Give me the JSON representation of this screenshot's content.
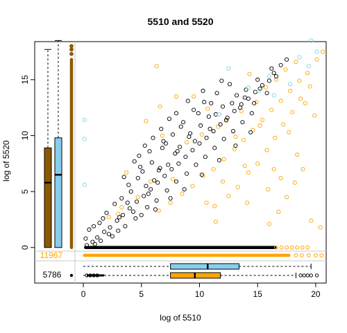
{
  "chart_data": {
    "type": "scatter",
    "title": "5510  and 5520",
    "xlabel": "log of 5510",
    "ylabel": "log of 5520",
    "xlim": [
      -0.6,
      20.9
    ],
    "ylim": [
      -0.2,
      18.4
    ],
    "x_ticks": [
      0,
      5,
      10,
      15,
      20
    ],
    "y_ticks": [
      0,
      5,
      10,
      15
    ],
    "colors": {
      "black_series": "#000000",
      "orange_series": "#FFA500",
      "lightblue_series": "#87CEEB",
      "brown_box": "#8B5A00",
      "grid_line": "#C8C8C8"
    },
    "series": [
      {
        "color": "black",
        "points": [
          [
            0.3,
            0.2
          ],
          [
            0.8,
            0.5
          ],
          [
            1.2,
            0.9
          ],
          [
            1.8,
            1.4
          ],
          [
            2.3,
            1.8
          ],
          [
            2.9,
            2.4
          ],
          [
            3.4,
            2.9
          ],
          [
            4.0,
            3.5
          ],
          [
            4.6,
            4.1
          ],
          [
            5.2,
            4.6
          ],
          [
            5.8,
            5.2
          ],
          [
            6.4,
            5.8
          ],
          [
            7.0,
            6.4
          ],
          [
            7.6,
            7.0
          ],
          [
            8.2,
            7.5
          ],
          [
            8.8,
            8.1
          ],
          [
            9.4,
            8.7
          ],
          [
            10.0,
            9.3
          ],
          [
            10.6,
            9.8
          ],
          [
            11.2,
            10.4
          ],
          [
            11.8,
            11.0
          ],
          [
            12.4,
            11.6
          ],
          [
            13.0,
            12.2
          ],
          [
            13.6,
            12.8
          ],
          [
            14.2,
            13.3
          ],
          [
            14.8,
            13.9
          ],
          [
            15.4,
            14.5
          ],
          [
            16.0,
            14.9
          ],
          [
            16.6,
            15.3
          ],
          [
            3.0,
            1.5
          ],
          [
            4.5,
            2.6
          ],
          [
            5.5,
            3.6
          ],
          [
            6.3,
            4.2
          ],
          [
            7.2,
            5.1
          ],
          [
            8.0,
            5.9
          ],
          [
            8.9,
            6.6
          ],
          [
            9.7,
            7.4
          ],
          [
            10.5,
            8.1
          ],
          [
            11.3,
            8.9
          ],
          [
            12.1,
            9.7
          ],
          [
            12.9,
            10.4
          ],
          [
            13.7,
            11.2
          ],
          [
            14.5,
            12.0
          ],
          [
            2.0,
            3.1
          ],
          [
            3.3,
            4.4
          ],
          [
            4.7,
            6.2
          ],
          [
            5.9,
            7.6
          ],
          [
            6.8,
            8.9
          ],
          [
            7.7,
            10.1
          ],
          [
            8.6,
            11.2
          ],
          [
            9.5,
            12.3
          ],
          [
            10.4,
            13.0
          ],
          [
            11.5,
            13.8
          ],
          [
            12.6,
            14.6
          ],
          [
            4.8,
            8.2
          ],
          [
            5.3,
            9.1
          ],
          [
            6.0,
            9.8
          ],
          [
            6.7,
            10.6
          ],
          [
            7.4,
            11.5
          ],
          [
            4.1,
            5.0
          ],
          [
            5.1,
            6.8
          ],
          [
            6.6,
            7.1
          ],
          [
            7.9,
            8.4
          ],
          [
            9.1,
            9.9
          ],
          [
            10.8,
            11.7
          ],
          [
            12.0,
            12.6
          ],
          [
            13.2,
            13.6
          ],
          [
            14.0,
            14.1
          ],
          [
            15.0,
            15.0
          ],
          [
            16.2,
            16.0
          ],
          [
            1.0,
            0.3
          ],
          [
            1.5,
            0.6
          ],
          [
            2.5,
            1.0
          ],
          [
            3.6,
            1.9
          ],
          [
            5.0,
            2.9
          ],
          [
            6.2,
            3.4
          ],
          [
            7.5,
            4.4
          ],
          [
            8.7,
            5.2
          ],
          [
            10.2,
            6.5
          ],
          [
            11.7,
            7.8
          ],
          [
            13.1,
            9.1
          ],
          [
            14.4,
            10.3
          ],
          [
            0.5,
            1.6
          ],
          [
            1.7,
            2.6
          ],
          [
            2.7,
            3.9
          ],
          [
            3.9,
            5.6
          ],
          [
            4.9,
            7.2
          ],
          [
            6.9,
            9.5
          ],
          [
            8.4,
            10.8
          ],
          [
            9.9,
            12.0
          ],
          [
            11.0,
            12.9
          ],
          [
            2.2,
            1.2
          ],
          [
            3.1,
            2.7
          ],
          [
            4.3,
            3.2
          ],
          [
            5.6,
            4.8
          ],
          [
            6.1,
            6.0
          ],
          [
            7.3,
            7.4
          ],
          [
            8.3,
            9.0
          ],
          [
            9.2,
            10.2
          ],
          [
            10.1,
            10.9
          ],
          [
            11.4,
            11.9
          ],
          [
            12.8,
            12.9
          ],
          [
            13.9,
            13.4
          ],
          [
            15.2,
            14.2
          ],
          [
            16.4,
            15.6
          ],
          [
            17.0,
            16.3
          ],
          [
            17.5,
            16.8
          ],
          [
            0.2,
            0.8
          ],
          [
            0.9,
            1.9
          ],
          [
            1.4,
            2.2
          ],
          [
            3.8,
            4.0
          ],
          [
            5.4,
            5.5
          ],
          [
            6.5,
            6.9
          ],
          [
            8.1,
            8.6
          ],
          [
            9.6,
            9.5
          ],
          [
            10.9,
            10.6
          ],
          [
            12.3,
            11.4
          ],
          [
            13.5,
            12.5
          ],
          [
            14.7,
            12.9
          ],
          [
            15.8,
            13.8
          ],
          [
            3.5,
            6.3
          ],
          [
            4.4,
            7.7
          ],
          [
            5.7,
            8.6
          ],
          [
            7.1,
            9.3
          ],
          [
            8.0,
            12.0
          ],
          [
            9.0,
            13.1
          ],
          [
            10.3,
            14.0
          ],
          [
            11.9,
            14.9
          ]
        ],
        "boxplot_x": [
          0,
          7.5,
          10.7,
          13.4,
          19.6
        ],
        "boxplot_y": [
          0,
          0,
          6.5,
          9.8,
          18.5
        ]
      },
      {
        "color": "orange",
        "points": [
          [
            6.5,
            3.3
          ],
          [
            7.5,
            4.0
          ],
          [
            8.5,
            4.8
          ],
          [
            9.4,
            5.5
          ],
          [
            10.3,
            6.4
          ],
          [
            11.2,
            7.0
          ],
          [
            12.1,
            7.9
          ],
          [
            13.0,
            8.8
          ],
          [
            13.8,
            9.6
          ],
          [
            14.6,
            10.5
          ],
          [
            15.4,
            11.4
          ],
          [
            16.2,
            12.3
          ],
          [
            17.0,
            13.1
          ],
          [
            17.8,
            14.0
          ],
          [
            18.6,
            14.9
          ],
          [
            19.3,
            15.6
          ],
          [
            20.1,
            16.8
          ],
          [
            20.6,
            17.5
          ],
          [
            11.3,
            3.7
          ],
          [
            12.5,
            4.6
          ],
          [
            13.3,
            5.4
          ],
          [
            14.2,
            6.7
          ],
          [
            15.0,
            7.5
          ],
          [
            15.8,
            8.7
          ],
          [
            16.5,
            9.8
          ],
          [
            17.2,
            11.0
          ],
          [
            18.0,
            12.1
          ],
          [
            18.7,
            13.3
          ],
          [
            19.5,
            14.4
          ],
          [
            16.0,
            2.1
          ],
          [
            16.8,
            3.2
          ],
          [
            17.5,
            4.5
          ],
          [
            18.2,
            5.8
          ],
          [
            18.9,
            7.0
          ],
          [
            12.3,
            11.3
          ],
          [
            13.6,
            12.2
          ],
          [
            14.9,
            13.0
          ],
          [
            15.7,
            14.3
          ],
          [
            16.6,
            15.0
          ],
          [
            17.4,
            15.9
          ],
          [
            18.3,
            16.6
          ],
          [
            8.9,
            9.4
          ],
          [
            10.2,
            10.1
          ],
          [
            11.6,
            10.8
          ],
          [
            4.7,
            4.5
          ],
          [
            5.8,
            5.9
          ],
          [
            7.7,
            6.1
          ],
          [
            2.2,
            2.7
          ],
          [
            3.3,
            3.6
          ],
          [
            3.7,
            6.7
          ],
          [
            3.0,
            3.0
          ],
          [
            16.4,
            7.0
          ],
          [
            14.1,
            4.0
          ],
          [
            12.0,
            5.9
          ],
          [
            13.9,
            7.3
          ],
          [
            19.6,
            2.4
          ],
          [
            20.4,
            1.8
          ],
          [
            18.4,
            8.3
          ],
          [
            17.0,
            6.2
          ],
          [
            19.9,
            11.8
          ],
          [
            8.0,
            13.5
          ],
          [
            6.6,
            12.6
          ],
          [
            10.7,
            12.4
          ],
          [
            14.3,
            15.5
          ],
          [
            11.4,
            2.3
          ],
          [
            5.4,
            11.3
          ],
          [
            6.8,
            10.0
          ],
          [
            9.5,
            13.5
          ],
          [
            15.9,
            5.2
          ],
          [
            10.6,
            4.0
          ],
          [
            13.1,
            9.9
          ],
          [
            15.2,
            10.9
          ],
          [
            17.7,
            10.3
          ],
          [
            19.1,
            12.9
          ],
          [
            6.3,
            16.2
          ]
        ],
        "boxplot_x": [
          0,
          7.5,
          9.6,
          11.8,
          18.3
        ]
      },
      {
        "color": "lightblue",
        "points": [
          [
            0.1,
            11.4
          ],
          [
            0.1,
            9.7
          ],
          [
            0.1,
            5.6
          ],
          [
            11.7,
            11.9
          ],
          [
            14.2,
            14.3
          ],
          [
            19.6,
            18.5
          ],
          [
            12.5,
            16.0
          ],
          [
            16.0,
            15.3
          ],
          [
            18.6,
            17.0
          ],
          [
            19.4,
            16.2
          ],
          [
            17.8,
            14.6
          ],
          [
            16.4,
            13.6
          ],
          [
            15.1,
            14.0
          ],
          [
            20.1,
            17.5
          ]
        ]
      }
    ],
    "axis_zero_counts": {
      "x_zero_label": "5786",
      "y_zero_label": "11967"
    },
    "legend": "none",
    "grid": false
  }
}
